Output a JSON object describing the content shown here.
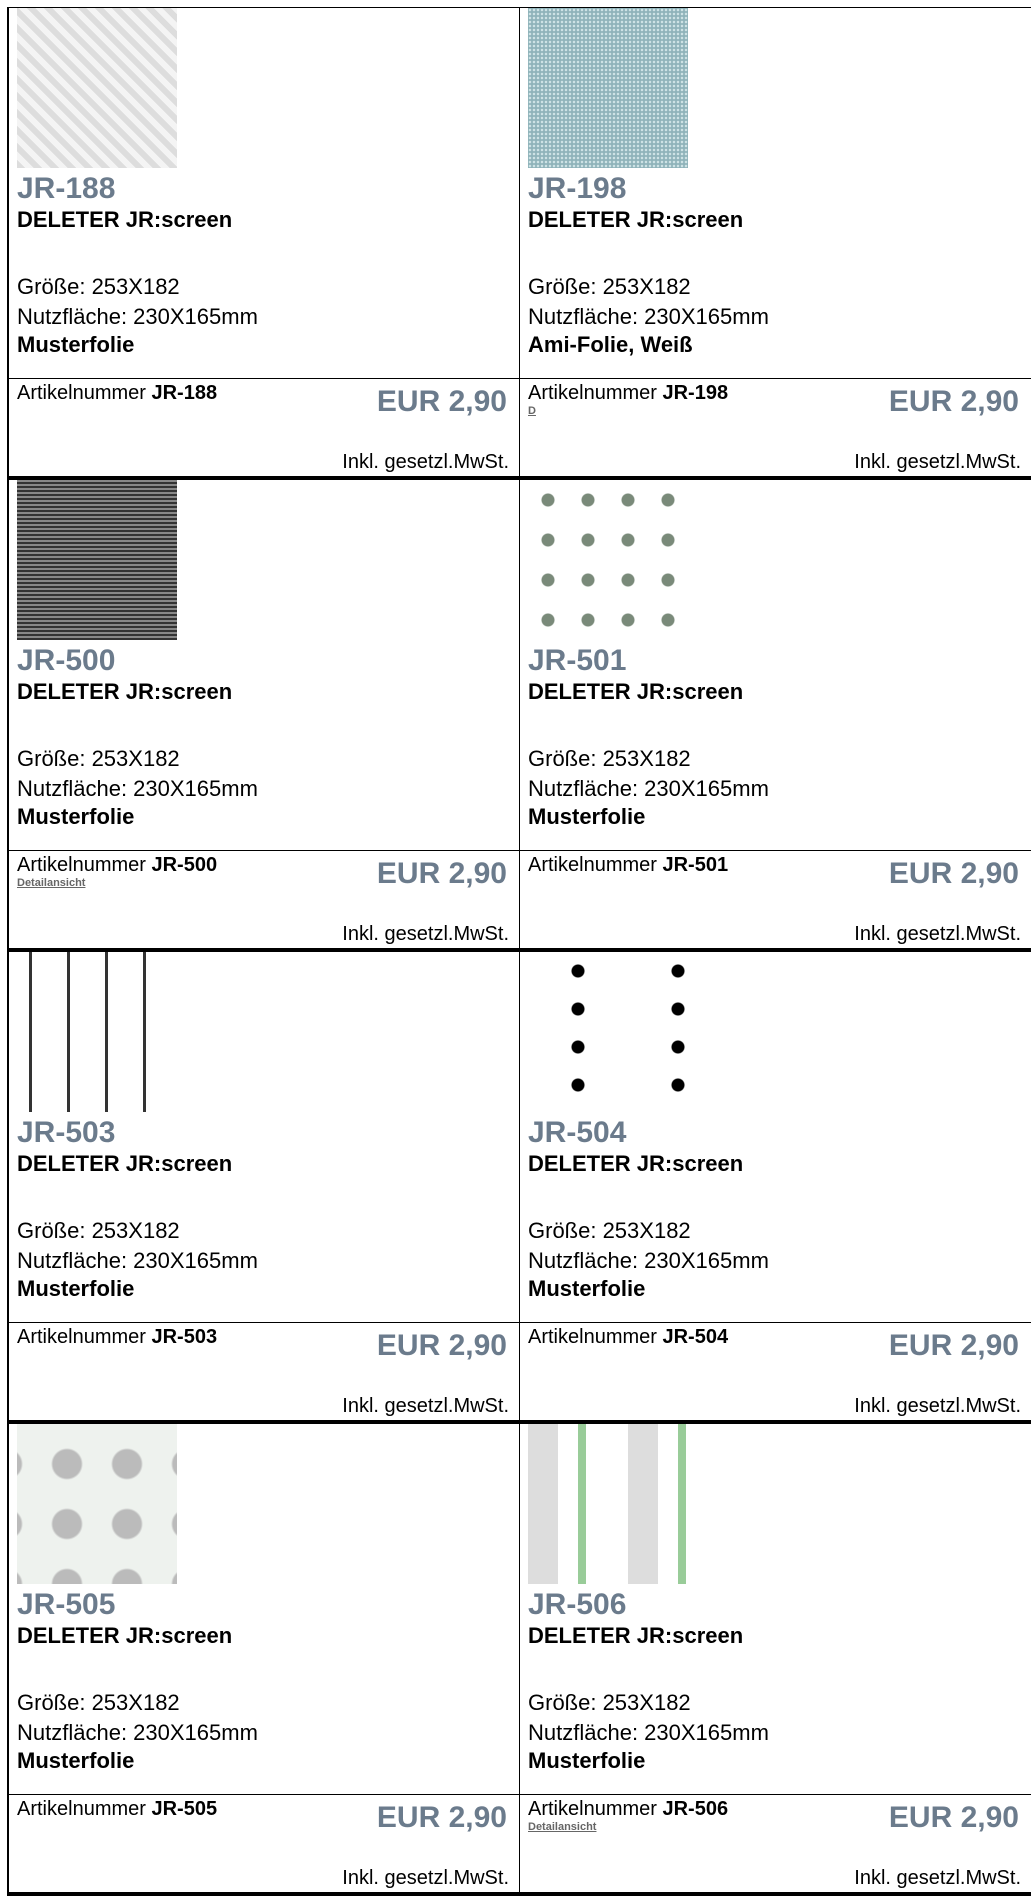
{
  "items": [
    {
      "code": "JR-188",
      "name": "DELETER JR:screen",
      "size": "Größe: 253X182",
      "usable": "Nutzfläche: 230X165mm",
      "desc": "Musterfolie",
      "article_label": "Artikelnummer",
      "article_code": "JR-188",
      "price": "EUR 2,90",
      "tax": "Inkl. gesetzl.MwSt."
    },
    {
      "code": "JR-198",
      "name": "DELETER JR:screen",
      "size": "Größe: 253X182",
      "usable": "Nutzfläche: 230X165mm",
      "desc": "Ami-Folie, Weiß",
      "article_label": "Artikelnummer",
      "article_code": "JR-198",
      "link": "D",
      "price": "EUR 2,90",
      "tax": "Inkl. gesetzl.MwSt."
    },
    {
      "code": "JR-500",
      "name": "DELETER JR:screen",
      "size": "Größe: 253X182",
      "usable": "Nutzfläche: 230X165mm",
      "desc": "Musterfolie",
      "article_label": "Artikelnummer",
      "article_code": "JR-500",
      "link": "Detailansicht",
      "price": "EUR 2,90",
      "tax": "Inkl. gesetzl.MwSt."
    },
    {
      "code": "JR-501",
      "name": "DELETER JR:screen",
      "size": "Größe: 253X182",
      "usable": "Nutzfläche: 230X165mm",
      "desc": "Musterfolie",
      "article_label": "Artikelnummer",
      "article_code": "JR-501",
      "price": "EUR 2,90",
      "tax": "Inkl. gesetzl.MwSt."
    },
    {
      "code": "JR-503",
      "name": "DELETER JR:screen",
      "size": "Größe: 253X182",
      "usable": "Nutzfläche: 230X165mm",
      "desc": "Musterfolie",
      "article_label": "Artikelnummer",
      "article_code": "JR-503",
      "price": "EUR 2,90",
      "tax": "Inkl. gesetzl.MwSt."
    },
    {
      "code": "JR-504",
      "name": "DELETER JR:screen",
      "size": "Größe: 253X182",
      "usable": "Nutzfläche: 230X165mm",
      "desc": "Musterfolie",
      "article_label": "Artikelnummer",
      "article_code": "JR-504",
      "price": "EUR 2,90",
      "tax": "Inkl. gesetzl.MwSt."
    },
    {
      "code": "JR-505",
      "name": "DELETER JR:screen",
      "size": "Größe: 253X182",
      "usable": "Nutzfläche: 230X165mm",
      "desc": "Musterfolie",
      "article_label": "Artikelnummer",
      "article_code": "JR-505",
      "price": "EUR 2,90",
      "tax": "Inkl. gesetzl.MwSt."
    },
    {
      "code": "JR-506",
      "name": "DELETER JR:screen",
      "size": "Größe: 253X182",
      "usable": "Nutzfläche: 230X165mm",
      "desc": "Musterfolie",
      "article_label": "Artikelnummer",
      "article_code": "JR-506",
      "link": "Detailansicht",
      "price": "EUR 2,90",
      "tax": "Inkl. gesetzl.MwSt."
    }
  ]
}
